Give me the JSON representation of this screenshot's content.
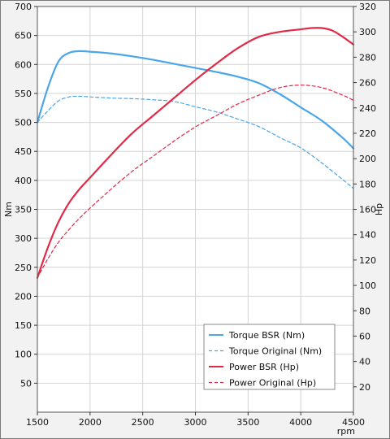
{
  "chart_data": {
    "type": "line",
    "xlabel": "rpm",
    "ylabel": "Nm",
    "y2label": "Hp",
    "xlim": [
      1500,
      4500
    ],
    "ylim": [
      0,
      700
    ],
    "y2lim": [
      0,
      320
    ],
    "xticks": [
      1500,
      2000,
      2500,
      3000,
      3500,
      4000,
      4500
    ],
    "yticks": [
      50,
      100,
      150,
      200,
      250,
      300,
      350,
      400,
      450,
      500,
      550,
      600,
      650,
      700
    ],
    "y2ticks": [
      20,
      40,
      60,
      80,
      100,
      120,
      140,
      160,
      180,
      200,
      220,
      240,
      260,
      280,
      300,
      320
    ],
    "grid": true,
    "legend_position": "bottom-right",
    "series": [
      {
        "name": "Torque BSR (Nm)",
        "axis": "left",
        "color": "#4aa6e8",
        "style": "solid",
        "x": [
          1500,
          1600,
          1700,
          1800,
          1900,
          2000,
          2200,
          2400,
          2600,
          2800,
          3000,
          3200,
          3400,
          3600,
          3800,
          4000,
          4200,
          4400,
          4500
        ],
        "y": [
          500,
          560,
          605,
          620,
          623,
          622,
          619,
          614,
          608,
          601,
          594,
          587,
          579,
          568,
          549,
          526,
          503,
          473,
          455
        ]
      },
      {
        "name": "Torque Original (Nm)",
        "axis": "left",
        "color": "#4aa6e8",
        "style": "dashed",
        "x": [
          1500,
          1600,
          1700,
          1800,
          1900,
          2000,
          2200,
          2400,
          2600,
          2800,
          3000,
          3200,
          3400,
          3600,
          3800,
          4000,
          4200,
          4400,
          4500
        ],
        "y": [
          500,
          520,
          537,
          544,
          545,
          544,
          542,
          541,
          539,
          536,
          527,
          518,
          506,
          493,
          474,
          456,
          430,
          401,
          386
        ]
      },
      {
        "name": "Power BSR (Hp)",
        "axis": "right",
        "color": "#e02a48",
        "style": "solid",
        "x": [
          1500,
          1600,
          1700,
          1800,
          1900,
          2000,
          2200,
          2400,
          2600,
          2800,
          3000,
          3200,
          3400,
          3600,
          3800,
          4000,
          4100,
          4200,
          4300,
          4400,
          4500
        ],
        "y": [
          106,
          130,
          150,
          165,
          176,
          185,
          203,
          220,
          234,
          248,
          262,
          275,
          287,
          296,
          300,
          302,
          303,
          303,
          301,
          296,
          290
        ]
      },
      {
        "name": "Power Original (Hp)",
        "axis": "right",
        "color": "#e02a48",
        "style": "dashed",
        "x": [
          1500,
          1600,
          1700,
          1800,
          1900,
          2000,
          2200,
          2400,
          2600,
          2800,
          3000,
          3200,
          3400,
          3600,
          3800,
          4000,
          4200,
          4400,
          4500
        ],
        "y": [
          106,
          121,
          134,
          144,
          153,
          161,
          176,
          190,
          202,
          214,
          225,
          234,
          243,
          250,
          256,
          258,
          256,
          250,
          246
        ]
      }
    ]
  }
}
